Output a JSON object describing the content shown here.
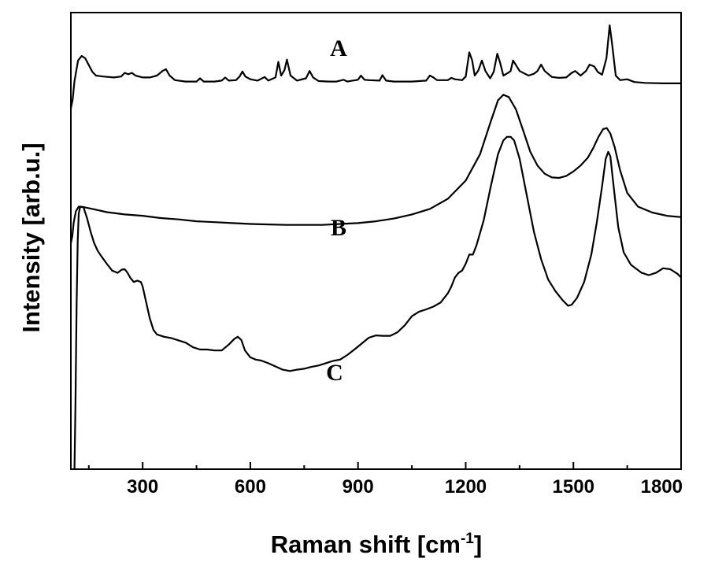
{
  "chart_data": {
    "type": "line",
    "title": "",
    "xlabel": "Raman shift [cm",
    "xlabel_sup": "-1",
    "xlabel_end": "]",
    "ylabel": "Intensity [arb.u.]",
    "xlim": [
      100,
      1800
    ],
    "ylim": [
      0,
      1
    ],
    "xticks": [
      300,
      600,
      900,
      1200,
      1500,
      1800
    ],
    "xtick_labels": [
      "300",
      "600",
      "900",
      "1200",
      "1500",
      "1800"
    ],
    "yticks_shown": false,
    "grid": false,
    "legend": "none",
    "series": [
      {
        "label": "A",
        "label_x": 1350,
        "label_y": 0.905,
        "points": [
          [
            100,
            0.79
          ],
          [
            105,
            0.81
          ],
          [
            110,
            0.85
          ],
          [
            120,
            0.895
          ],
          [
            130,
            0.905
          ],
          [
            140,
            0.9
          ],
          [
            150,
            0.885
          ],
          [
            160,
            0.87
          ],
          [
            170,
            0.862
          ],
          [
            190,
            0.86
          ],
          [
            220,
            0.858
          ],
          [
            240,
            0.86
          ],
          [
            250,
            0.868
          ],
          [
            260,
            0.865
          ],
          [
            270,
            0.868
          ],
          [
            280,
            0.862
          ],
          [
            300,
            0.858
          ],
          [
            320,
            0.858
          ],
          [
            340,
            0.862
          ],
          [
            355,
            0.872
          ],
          [
            365,
            0.876
          ],
          [
            375,
            0.862
          ],
          [
            390,
            0.852
          ],
          [
            420,
            0.849
          ],
          [
            450,
            0.849
          ],
          [
            460,
            0.856
          ],
          [
            470,
            0.849
          ],
          [
            500,
            0.849
          ],
          [
            520,
            0.851
          ],
          [
            530,
            0.858
          ],
          [
            540,
            0.851
          ],
          [
            560,
            0.852
          ],
          [
            570,
            0.86
          ],
          [
            578,
            0.871
          ],
          [
            586,
            0.86
          ],
          [
            600,
            0.854
          ],
          [
            620,
            0.851
          ],
          [
            640,
            0.859
          ],
          [
            650,
            0.851
          ],
          [
            670,
            0.858
          ],
          [
            678,
            0.892
          ],
          [
            686,
            0.862
          ],
          [
            695,
            0.874
          ],
          [
            702,
            0.897
          ],
          [
            712,
            0.862
          ],
          [
            730,
            0.851
          ],
          [
            755,
            0.856
          ],
          [
            765,
            0.872
          ],
          [
            775,
            0.858
          ],
          [
            790,
            0.85
          ],
          [
            820,
            0.849
          ],
          [
            840,
            0.849
          ],
          [
            860,
            0.853
          ],
          [
            870,
            0.849
          ],
          [
            900,
            0.853
          ],
          [
            908,
            0.862
          ],
          [
            918,
            0.853
          ],
          [
            930,
            0.852
          ],
          [
            960,
            0.851
          ],
          [
            968,
            0.863
          ],
          [
            978,
            0.851
          ],
          [
            1000,
            0.849
          ],
          [
            1050,
            0.849
          ],
          [
            1090,
            0.851
          ],
          [
            1100,
            0.862
          ],
          [
            1110,
            0.858
          ],
          [
            1120,
            0.852
          ],
          [
            1150,
            0.852
          ],
          [
            1160,
            0.857
          ],
          [
            1170,
            0.854
          ],
          [
            1190,
            0.852
          ],
          [
            1200,
            0.86
          ],
          [
            1210,
            0.913
          ],
          [
            1218,
            0.895
          ],
          [
            1225,
            0.862
          ],
          [
            1235,
            0.873
          ],
          [
            1245,
            0.895
          ],
          [
            1255,
            0.872
          ],
          [
            1268,
            0.856
          ],
          [
            1278,
            0.87
          ],
          [
            1288,
            0.91
          ],
          [
            1296,
            0.89
          ],
          [
            1305,
            0.862
          ],
          [
            1318,
            0.868
          ],
          [
            1325,
            0.872
          ],
          [
            1332,
            0.895
          ],
          [
            1340,
            0.885
          ],
          [
            1350,
            0.872
          ],
          [
            1365,
            0.866
          ],
          [
            1375,
            0.862
          ],
          [
            1390,
            0.866
          ],
          [
            1400,
            0.872
          ],
          [
            1410,
            0.886
          ],
          [
            1420,
            0.872
          ],
          [
            1440,
            0.859
          ],
          [
            1460,
            0.857
          ],
          [
            1480,
            0.858
          ],
          [
            1495,
            0.868
          ],
          [
            1505,
            0.872
          ],
          [
            1520,
            0.862
          ],
          [
            1535,
            0.872
          ],
          [
            1545,
            0.886
          ],
          [
            1558,
            0.882
          ],
          [
            1568,
            0.87
          ],
          [
            1580,
            0.864
          ],
          [
            1592,
            0.9
          ],
          [
            1601,
            0.972
          ],
          [
            1608,
            0.93
          ],
          [
            1618,
            0.862
          ],
          [
            1630,
            0.852
          ],
          [
            1650,
            0.854
          ],
          [
            1670,
            0.848
          ],
          [
            1700,
            0.846
          ],
          [
            1750,
            0.845
          ],
          [
            1800,
            0.845
          ]
        ]
      },
      {
        "label": "B",
        "label_x": 1370,
        "label_y": 0.512,
        "points": [
          [
            100,
            0.495
          ],
          [
            104,
            0.51
          ],
          [
            108,
            0.54
          ],
          [
            114,
            0.565
          ],
          [
            122,
            0.575
          ],
          [
            135,
            0.574
          ],
          [
            160,
            0.57
          ],
          [
            200,
            0.563
          ],
          [
            250,
            0.558
          ],
          [
            300,
            0.555
          ],
          [
            350,
            0.55
          ],
          [
            400,
            0.547
          ],
          [
            450,
            0.543
          ],
          [
            500,
            0.541
          ],
          [
            550,
            0.539
          ],
          [
            600,
            0.537
          ],
          [
            650,
            0.536
          ],
          [
            700,
            0.535
          ],
          [
            750,
            0.535
          ],
          [
            800,
            0.535
          ],
          [
            850,
            0.537
          ],
          [
            900,
            0.539
          ],
          [
            950,
            0.543
          ],
          [
            1000,
            0.549
          ],
          [
            1050,
            0.558
          ],
          [
            1100,
            0.57
          ],
          [
            1150,
            0.592
          ],
          [
            1200,
            0.632
          ],
          [
            1240,
            0.69
          ],
          [
            1270,
            0.762
          ],
          [
            1290,
            0.808
          ],
          [
            1305,
            0.82
          ],
          [
            1320,
            0.815
          ],
          [
            1340,
            0.788
          ],
          [
            1360,
            0.742
          ],
          [
            1380,
            0.695
          ],
          [
            1400,
            0.665
          ],
          [
            1420,
            0.647
          ],
          [
            1440,
            0.639
          ],
          [
            1460,
            0.638
          ],
          [
            1480,
            0.642
          ],
          [
            1500,
            0.652
          ],
          [
            1520,
            0.665
          ],
          [
            1540,
            0.682
          ],
          [
            1555,
            0.703
          ],
          [
            1570,
            0.728
          ],
          [
            1583,
            0.745
          ],
          [
            1593,
            0.747
          ],
          [
            1603,
            0.735
          ],
          [
            1615,
            0.705
          ],
          [
            1630,
            0.655
          ],
          [
            1650,
            0.605
          ],
          [
            1680,
            0.575
          ],
          [
            1720,
            0.562
          ],
          [
            1760,
            0.555
          ],
          [
            1800,
            0.552
          ]
        ]
      },
      {
        "label": "C",
        "label_x": 1350,
        "label_y": 0.195,
        "points": [
          [
            110,
            0.0
          ],
          [
            113,
            0.15
          ],
          [
            116,
            0.36
          ],
          [
            119,
            0.5
          ],
          [
            122,
            0.56
          ],
          [
            126,
            0.575
          ],
          [
            135,
            0.574
          ],
          [
            145,
            0.55
          ],
          [
            155,
            0.52
          ],
          [
            165,
            0.495
          ],
          [
            175,
            0.478
          ],
          [
            185,
            0.466
          ],
          [
            200,
            0.45
          ],
          [
            215,
            0.435
          ],
          [
            230,
            0.43
          ],
          [
            242,
            0.437
          ],
          [
            250,
            0.438
          ],
          [
            258,
            0.43
          ],
          [
            265,
            0.42
          ],
          [
            275,
            0.41
          ],
          [
            285,
            0.413
          ],
          [
            295,
            0.41
          ],
          [
            300,
            0.4
          ],
          [
            310,
            0.365
          ],
          [
            320,
            0.33
          ],
          [
            330,
            0.305
          ],
          [
            340,
            0.295
          ],
          [
            360,
            0.29
          ],
          [
            380,
            0.287
          ],
          [
            400,
            0.282
          ],
          [
            420,
            0.277
          ],
          [
            440,
            0.267
          ],
          [
            460,
            0.262
          ],
          [
            480,
            0.262
          ],
          [
            500,
            0.26
          ],
          [
            520,
            0.26
          ],
          [
            540,
            0.273
          ],
          [
            555,
            0.285
          ],
          [
            565,
            0.29
          ],
          [
            575,
            0.283
          ],
          [
            585,
            0.26
          ],
          [
            600,
            0.245
          ],
          [
            615,
            0.24
          ],
          [
            630,
            0.238
          ],
          [
            650,
            0.232
          ],
          [
            670,
            0.225
          ],
          [
            690,
            0.218
          ],
          [
            710,
            0.215
          ],
          [
            730,
            0.218
          ],
          [
            750,
            0.22
          ],
          [
            770,
            0.224
          ],
          [
            790,
            0.227
          ],
          [
            810,
            0.232
          ],
          [
            830,
            0.237
          ],
          [
            850,
            0.24
          ],
          [
            870,
            0.25
          ],
          [
            890,
            0.262
          ],
          [
            910,
            0.275
          ],
          [
            930,
            0.288
          ],
          [
            950,
            0.293
          ],
          [
            970,
            0.292
          ],
          [
            990,
            0.292
          ],
          [
            1010,
            0.3
          ],
          [
            1030,
            0.315
          ],
          [
            1050,
            0.335
          ],
          [
            1070,
            0.345
          ],
          [
            1090,
            0.35
          ],
          [
            1110,
            0.356
          ],
          [
            1130,
            0.365
          ],
          [
            1150,
            0.385
          ],
          [
            1160,
            0.4
          ],
          [
            1170,
            0.42
          ],
          [
            1180,
            0.43
          ],
          [
            1190,
            0.435
          ],
          [
            1200,
            0.45
          ],
          [
            1210,
            0.47
          ],
          [
            1220,
            0.47
          ],
          [
            1230,
            0.49
          ],
          [
            1250,
            0.545
          ],
          [
            1270,
            0.62
          ],
          [
            1290,
            0.69
          ],
          [
            1305,
            0.72
          ],
          [
            1315,
            0.728
          ],
          [
            1325,
            0.728
          ],
          [
            1335,
            0.72
          ],
          [
            1350,
            0.68
          ],
          [
            1370,
            0.6
          ],
          [
            1390,
            0.52
          ],
          [
            1410,
            0.46
          ],
          [
            1430,
            0.415
          ],
          [
            1450,
            0.39
          ],
          [
            1470,
            0.37
          ],
          [
            1485,
            0.358
          ],
          [
            1495,
            0.36
          ],
          [
            1510,
            0.375
          ],
          [
            1530,
            0.41
          ],
          [
            1550,
            0.47
          ],
          [
            1565,
            0.54
          ],
          [
            1580,
            0.62
          ],
          [
            1590,
            0.68
          ],
          [
            1597,
            0.695
          ],
          [
            1603,
            0.685
          ],
          [
            1612,
            0.62
          ],
          [
            1625,
            0.53
          ],
          [
            1640,
            0.475
          ],
          [
            1660,
            0.448
          ],
          [
            1690,
            0.43
          ],
          [
            1710,
            0.425
          ],
          [
            1730,
            0.43
          ],
          [
            1750,
            0.44
          ],
          [
            1770,
            0.438
          ],
          [
            1790,
            0.428
          ],
          [
            1800,
            0.42
          ]
        ]
      }
    ]
  }
}
